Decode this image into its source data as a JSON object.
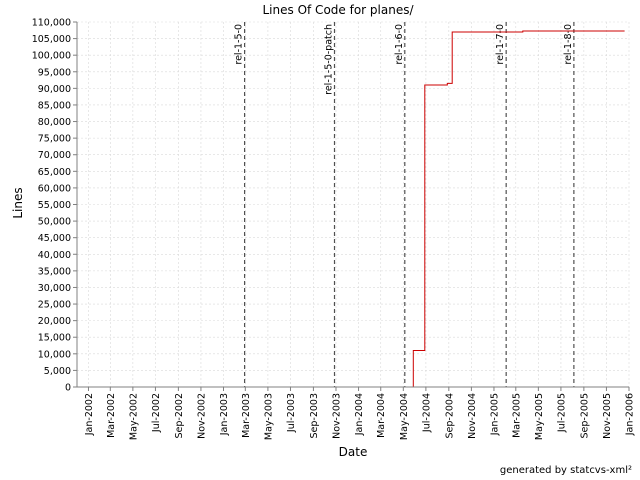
{
  "chart_data": {
    "type": "line",
    "title": "Lines Of Code for planes/",
    "xlabel": "Date",
    "ylabel": "Lines",
    "xlim": [
      "2001-12-01",
      "2006-01-01"
    ],
    "ylim": [
      0,
      110000
    ],
    "y_ticks": [
      0,
      5000,
      10000,
      15000,
      20000,
      25000,
      30000,
      35000,
      40000,
      45000,
      50000,
      55000,
      60000,
      65000,
      70000,
      75000,
      80000,
      85000,
      90000,
      95000,
      100000,
      105000,
      110000
    ],
    "y_tick_labels": [
      "0",
      "5,000",
      "10,000",
      "15,000",
      "20,000",
      "25,000",
      "30,000",
      "35,000",
      "40,000",
      "45,000",
      "50,000",
      "55,000",
      "60,000",
      "65,000",
      "70,000",
      "75,000",
      "80,000",
      "85,000",
      "90,000",
      "95,000",
      "100,000",
      "105,000",
      "110,000"
    ],
    "x_ticks": [
      "2002-01-01",
      "2002-03-01",
      "2002-05-01",
      "2002-07-01",
      "2002-09-01",
      "2002-11-01",
      "2003-01-01",
      "2003-03-01",
      "2003-05-01",
      "2003-07-01",
      "2003-09-01",
      "2003-11-01",
      "2004-01-01",
      "2004-03-01",
      "2004-05-01",
      "2004-07-01",
      "2004-09-01",
      "2004-11-01",
      "2005-01-01",
      "2005-03-01",
      "2005-05-01",
      "2005-07-01",
      "2005-09-01",
      "2005-11-01",
      "2006-01-01"
    ],
    "x_tick_labels": [
      "Jan-2002",
      "Mar-2002",
      "May-2002",
      "Jul-2002",
      "Sep-2002",
      "Nov-2002",
      "Jan-2003",
      "Mar-2003",
      "May-2003",
      "Jul-2003",
      "Sep-2003",
      "Nov-2003",
      "Jan-2004",
      "Mar-2004",
      "May-2004",
      "Jul-2004",
      "Sep-2004",
      "Nov-2004",
      "Jan-2005",
      "Mar-2005",
      "May-2005",
      "Jul-2005",
      "Sep-2005",
      "Nov-2005",
      "Jan-2006"
    ],
    "grid": true,
    "series": [
      {
        "color": "#cc0000",
        "step": true,
        "points": [
          [
            "2002-01-01",
            0
          ],
          [
            "2004-05-28",
            0
          ],
          [
            "2004-05-28",
            11000
          ],
          [
            "2004-06-28",
            11000
          ],
          [
            "2004-06-28",
            91000
          ],
          [
            "2004-08-28",
            91000
          ],
          [
            "2004-08-28",
            91500
          ],
          [
            "2004-09-10",
            91500
          ],
          [
            "2004-09-10",
            107000
          ],
          [
            "2005-03-20",
            107000
          ],
          [
            "2005-03-20",
            107300
          ],
          [
            "2005-12-20",
            107300
          ]
        ]
      }
    ],
    "markers": [
      {
        "label": "rel-1-5-0",
        "date": "2003-02-27"
      },
      {
        "label": "rel-1-5-0-patch",
        "date": "2003-10-28"
      },
      {
        "label": "rel-1-6-0",
        "date": "2004-05-05"
      },
      {
        "label": "rel-1-7-0",
        "date": "2005-02-03"
      },
      {
        "label": "rel-1-8-0",
        "date": "2005-08-05"
      }
    ]
  },
  "footer": "generated by statcvs-xml²"
}
